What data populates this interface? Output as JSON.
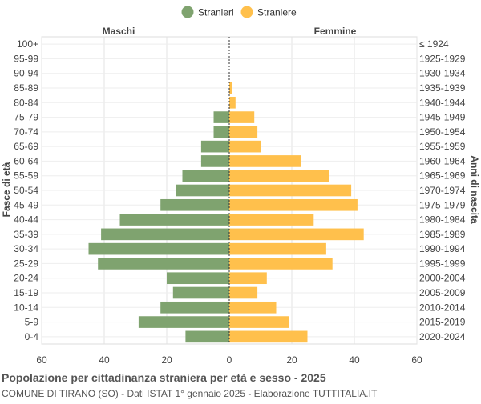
{
  "chart_data": {
    "type": "bar",
    "orientation": "horizontal-pyramid",
    "title": "Popolazione per cittadinanza straniera per età e sesso - 2025",
    "subtitle": "COMUNE DI TIRANO (SO) - Dati ISTAT 1° gennaio 2025 - Elaborazione TUTTITALIA.IT",
    "ylabel_left": "Fasce di età",
    "ylabel_right": "Anni di nascita",
    "left_header": "Maschi",
    "right_header": "Femmine",
    "xlim": [
      -60,
      60
    ],
    "xticks": [
      "60",
      "40",
      "20",
      "0",
      "20",
      "40",
      "60"
    ],
    "xtick_values": [
      -60,
      -40,
      -20,
      0,
      20,
      40,
      60
    ],
    "grid": true,
    "legend_position": "top-center",
    "categories": [
      "100+",
      "95-99",
      "90-94",
      "85-89",
      "80-84",
      "75-79",
      "70-74",
      "65-69",
      "60-64",
      "55-59",
      "50-54",
      "45-49",
      "40-44",
      "35-39",
      "30-34",
      "25-29",
      "20-24",
      "15-19",
      "10-14",
      "5-9",
      "0-4"
    ],
    "birth_years": [
      "≤ 1924",
      "1925-1929",
      "1930-1934",
      "1935-1939",
      "1940-1944",
      "1945-1949",
      "1950-1954",
      "1955-1959",
      "1960-1964",
      "1965-1969",
      "1970-1974",
      "1975-1979",
      "1980-1984",
      "1985-1989",
      "1990-1994",
      "1995-1999",
      "2000-2004",
      "2005-2009",
      "2010-2014",
      "2015-2019",
      "2020-2024"
    ],
    "series": [
      {
        "name": "Stranieri",
        "color": "#7fa36f",
        "values": [
          0,
          0,
          0,
          0,
          0,
          5,
          5,
          9,
          9,
          15,
          17,
          22,
          35,
          41,
          45,
          42,
          20,
          18,
          22,
          29,
          14
        ]
      },
      {
        "name": "Straniere",
        "color": "#ffc04c",
        "values": [
          0,
          0,
          0,
          1,
          2,
          8,
          9,
          10,
          23,
          32,
          39,
          41,
          27,
          43,
          31,
          33,
          12,
          9,
          15,
          19,
          25
        ]
      }
    ]
  }
}
